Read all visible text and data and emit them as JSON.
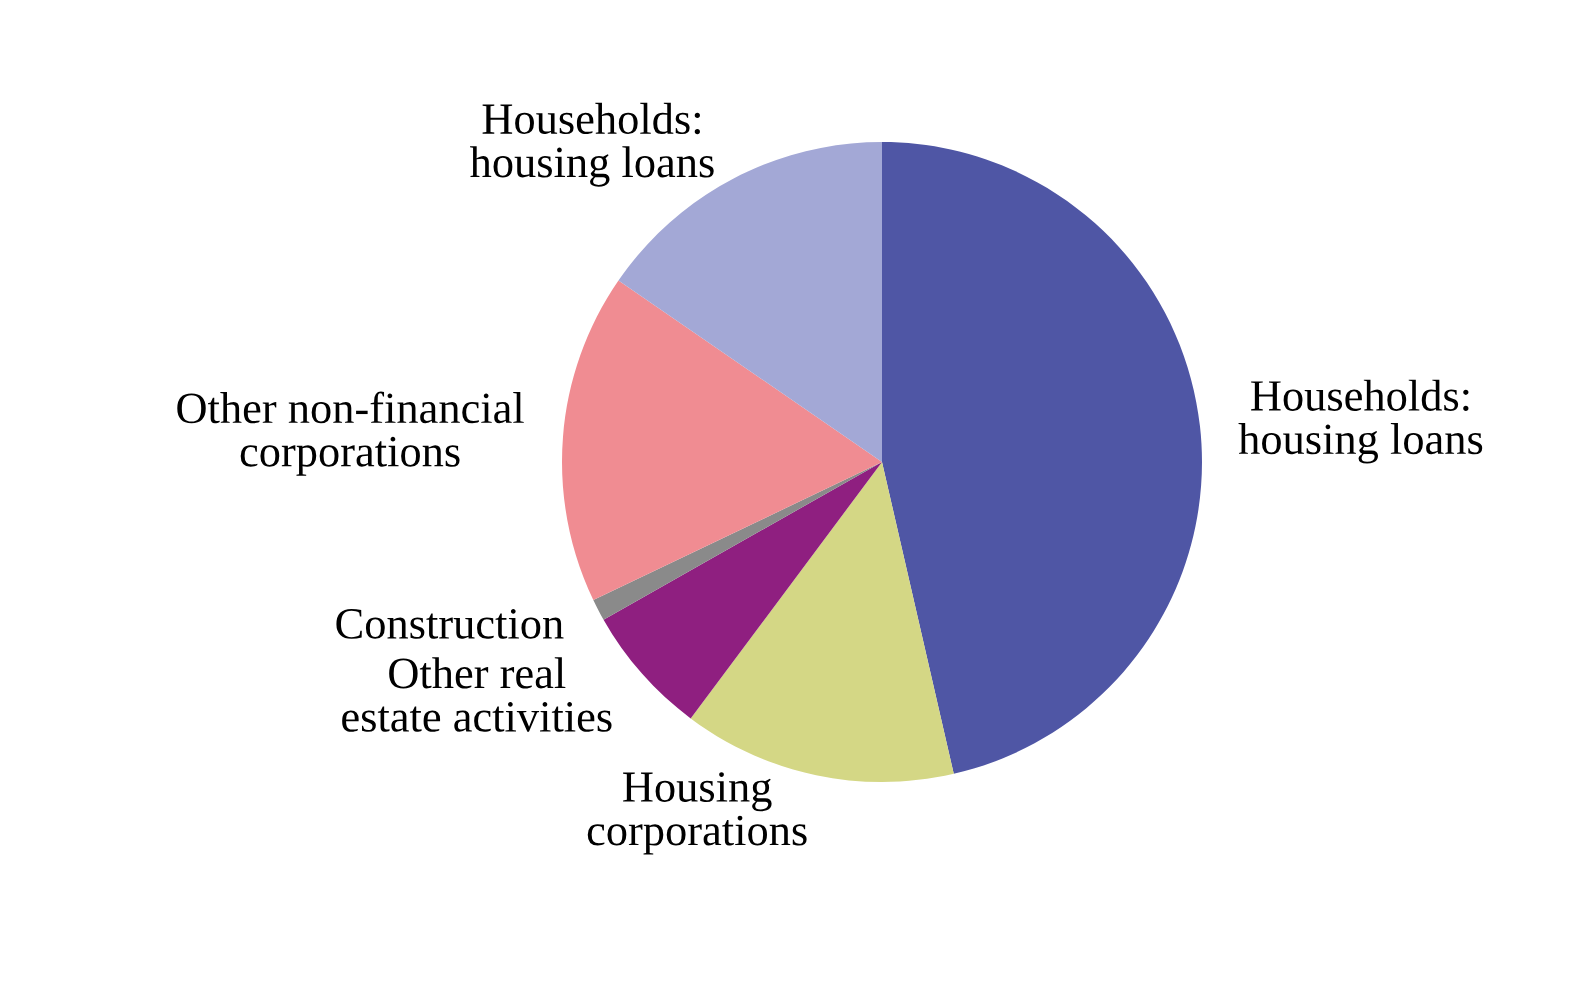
{
  "chart_data": {
    "type": "pie",
    "categories": [
      "Households:\nhousing loans",
      "Housing\ncorporations",
      "Other real\nestate activities",
      "Construction",
      "Other non-financial\ncorporations",
      "Households:\nhousing loans"
    ],
    "values": [
      46.4,
      13.8,
      6.6,
      1.1,
      16.7,
      15.4
    ],
    "colors": [
      "#4f56a5",
      "#d4d785",
      "#8f1f80",
      "#8a8a8a",
      "#f08c92",
      "#a3a8d6"
    ],
    "legend": false
  }
}
